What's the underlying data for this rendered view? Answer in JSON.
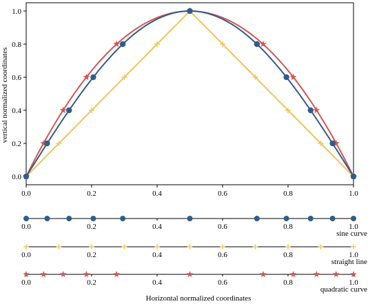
{
  "chart_data": {
    "type": "line",
    "xlabel": "Horizontal normalized coordinates",
    "ylabel": "vertical normalized coordinates",
    "xlim": [
      0,
      1
    ],
    "ylim": [
      -0.05,
      1.05
    ],
    "grid": false,
    "x_ticks": [
      "0.0",
      "0.2",
      "0.4",
      "0.6",
      "0.8",
      "1.0"
    ],
    "y_ticks": [
      "0.0",
      "0.2",
      "0.4",
      "0.6",
      "0.8",
      "1.0"
    ],
    "series": [
      {
        "id": "sine",
        "color": "#2f5d8c",
        "marker": "circle",
        "points": [
          {
            "x": 0.0,
            "y": 0.0
          },
          {
            "x": 0.064,
            "y": 0.2
          },
          {
            "x": 0.131,
            "y": 0.4
          },
          {
            "x": 0.205,
            "y": 0.6
          },
          {
            "x": 0.295,
            "y": 0.8
          },
          {
            "x": 0.5,
            "y": 1.0
          },
          {
            "x": 0.705,
            "y": 0.8
          },
          {
            "x": 0.795,
            "y": 0.6
          },
          {
            "x": 0.869,
            "y": 0.4
          },
          {
            "x": 0.936,
            "y": 0.2
          },
          {
            "x": 1.0,
            "y": 0.0
          }
        ]
      },
      {
        "id": "straight",
        "color": "#f2c45a",
        "marker": "plus",
        "points": [
          {
            "x": 0.0,
            "y": 0.0
          },
          {
            "x": 0.1,
            "y": 0.2
          },
          {
            "x": 0.2,
            "y": 0.4
          },
          {
            "x": 0.3,
            "y": 0.6
          },
          {
            "x": 0.4,
            "y": 0.8
          },
          {
            "x": 0.5,
            "y": 1.0
          },
          {
            "x": 0.6,
            "y": 0.8
          },
          {
            "x": 0.7,
            "y": 0.6
          },
          {
            "x": 0.8,
            "y": 0.4
          },
          {
            "x": 0.9,
            "y": 0.2
          },
          {
            "x": 1.0,
            "y": 0.0
          }
        ]
      },
      {
        "id": "quadratic",
        "color": "#d9534f",
        "marker": "star",
        "points": [
          {
            "x": 0.0,
            "y": 0.0
          },
          {
            "x": 0.053,
            "y": 0.2
          },
          {
            "x": 0.113,
            "y": 0.4
          },
          {
            "x": 0.184,
            "y": 0.6
          },
          {
            "x": 0.276,
            "y": 0.8
          },
          {
            "x": 0.5,
            "y": 1.0
          },
          {
            "x": 0.724,
            "y": 0.8
          },
          {
            "x": 0.816,
            "y": 0.6
          },
          {
            "x": 0.887,
            "y": 0.4
          },
          {
            "x": 0.947,
            "y": 0.2
          },
          {
            "x": 1.0,
            "y": 0.0
          }
        ]
      }
    ],
    "strips": [
      {
        "series": "sine",
        "label": "sine curve"
      },
      {
        "series": "straight",
        "label": "straight line"
      },
      {
        "series": "quadratic",
        "label": "quadratic curve"
      }
    ]
  }
}
